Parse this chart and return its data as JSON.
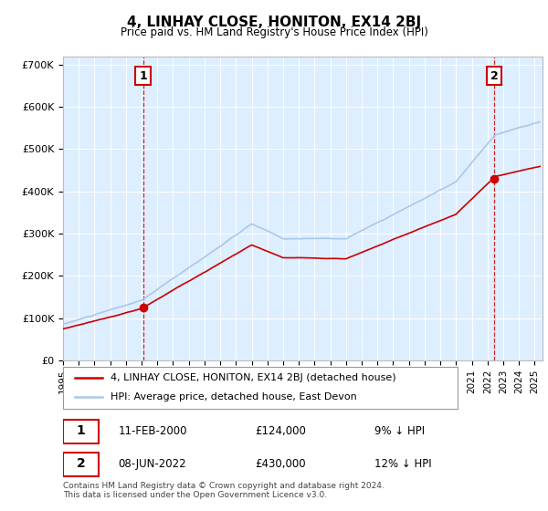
{
  "title": "4, LINHAY CLOSE, HONITON, EX14 2BJ",
  "subtitle": "Price paid vs. HM Land Registry's House Price Index (HPI)",
  "sale1_date": "11-FEB-2000",
  "sale1_price": 124000,
  "sale1_label": "9% ↓ HPI",
  "sale1_num": "1",
  "sale2_date": "08-JUN-2022",
  "sale2_price": 430000,
  "sale2_label": "12% ↓ HPI",
  "sale2_num": "2",
  "legend_line1": "4, LINHAY CLOSE, HONITON, EX14 2BJ (detached house)",
  "legend_line2": "HPI: Average price, detached house, East Devon",
  "footnote": "Contains HM Land Registry data © Crown copyright and database right 2024.\nThis data is licensed under the Open Government Licence v3.0.",
  "hpi_color": "#aac8e8",
  "price_color": "#cc0000",
  "vline_color": "#cc0000",
  "background_color": "#ddeeff",
  "ylim_max": 720000,
  "ylim_min": 0,
  "xlim_min": 1995,
  "xlim_max": 2025.5
}
